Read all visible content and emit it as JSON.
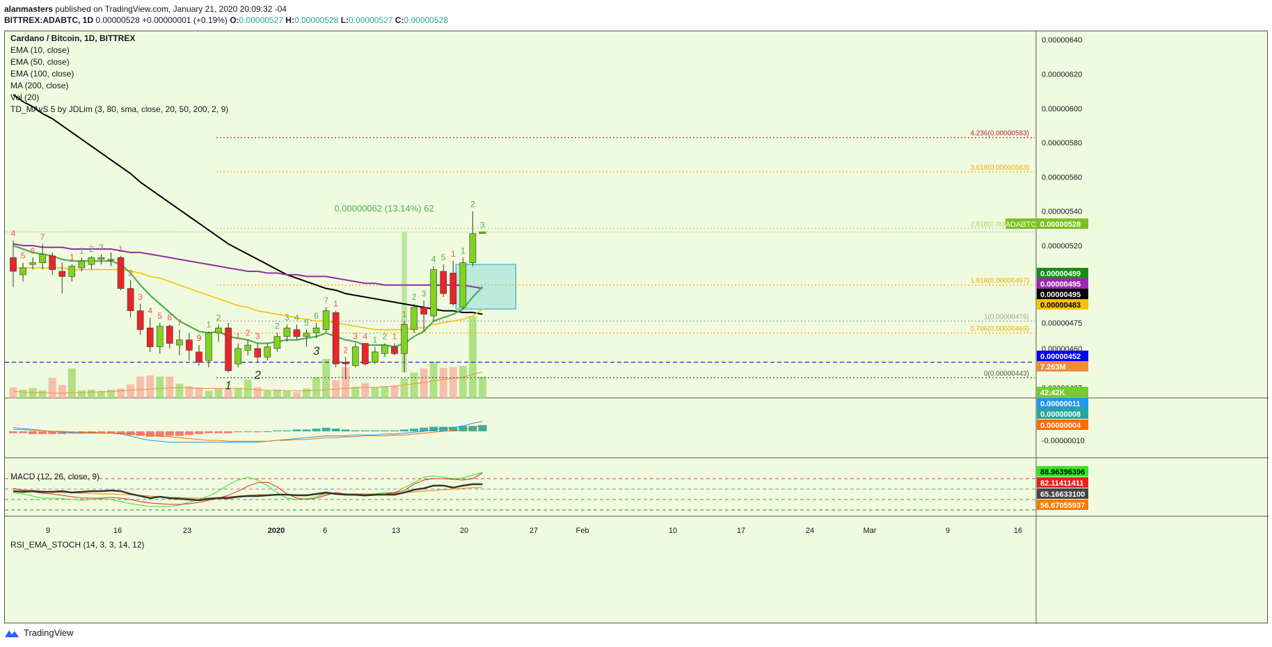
{
  "header": {
    "author": "alanmasters",
    "published_text": "published on TradingView.com, January 21, 2020 20:09:32 -04",
    "symbol": "BITTREX:ADABTC, 1D",
    "last": "0.00000528",
    "change": "+0.00000001 (+0.19%)",
    "o_label": "O:",
    "o": "0.00000527",
    "h_label": "H:",
    "h": "0.00000528",
    "l_label": "L:",
    "l": "0.00000527",
    "c_label": "C:",
    "c": "0.00000528"
  },
  "legend": {
    "title": "Cardano / Bitcoin, 1D, BITTREX",
    "indicators": [
      "EMA (10, close)",
      "EMA (50, close)",
      "EMA (100, close)",
      "MA (200, close)",
      "Vol (20)",
      "TD_MAvS 5 by JDLim (3, 80, sma, close, 20, 50, 200, 2, 9)"
    ],
    "macd": "MACD (12, 26, close, 9)",
    "rsi": "RSI_EMA_STOCH (14, 3, 3, 14, 12)"
  },
  "chart_data": {
    "type": "candlestick",
    "x_ticks": [
      "9",
      "16",
      "23",
      "2020",
      "6",
      "13",
      "20",
      "27",
      "Feb",
      "10",
      "17",
      "24",
      "Mar",
      "9",
      "16"
    ],
    "price_ticks": [
      "0.00000640",
      "0.00000620",
      "0.00000600",
      "0.00000580",
      "0.00000560",
      "0.00000540",
      "0.00000520",
      "0.00000505",
      "0.00000475",
      "0.00000460",
      "0.00000437"
    ],
    "macd_ticks": [
      "-0.00000010"
    ],
    "candles": [
      {
        "o": 513,
        "h": 523,
        "l": 496,
        "c": 505
      },
      {
        "o": 503,
        "h": 510,
        "l": 499,
        "c": 507
      },
      {
        "o": 509,
        "h": 513,
        "l": 506,
        "c": 510
      },
      {
        "o": 510,
        "h": 521,
        "l": 506,
        "c": 515
      },
      {
        "o": 514,
        "h": 516,
        "l": 503,
        "c": 506
      },
      {
        "o": 505,
        "h": 510,
        "l": 492,
        "c": 502
      },
      {
        "o": 502,
        "h": 509,
        "l": 499,
        "c": 508
      },
      {
        "o": 507,
        "h": 513,
        "l": 505,
        "c": 511
      },
      {
        "o": 509,
        "h": 514,
        "l": 506,
        "c": 513
      },
      {
        "o": 512,
        "h": 515,
        "l": 509,
        "c": 513
      },
      {
        "o": 512,
        "h": 516,
        "l": 508,
        "c": 512
      },
      {
        "o": 513,
        "h": 514,
        "l": 494,
        "c": 495
      },
      {
        "o": 495,
        "h": 500,
        "l": 478,
        "c": 482
      },
      {
        "o": 482,
        "h": 486,
        "l": 468,
        "c": 471
      },
      {
        "o": 472,
        "h": 478,
        "l": 458,
        "c": 461
      },
      {
        "o": 461,
        "h": 475,
        "l": 457,
        "c": 473
      },
      {
        "o": 473,
        "h": 474,
        "l": 460,
        "c": 463
      },
      {
        "o": 462,
        "h": 471,
        "l": 456,
        "c": 465
      },
      {
        "o": 465,
        "h": 469,
        "l": 453,
        "c": 459
      },
      {
        "o": 458,
        "h": 462,
        "l": 450,
        "c": 452
      },
      {
        "o": 453,
        "h": 470,
        "l": 449,
        "c": 469
      },
      {
        "o": 469,
        "h": 474,
        "l": 464,
        "c": 472
      },
      {
        "o": 472,
        "h": 475,
        "l": 446,
        "c": 447
      },
      {
        "o": 451,
        "h": 463,
        "l": 449,
        "c": 460
      },
      {
        "o": 459,
        "h": 465,
        "l": 456,
        "c": 462
      },
      {
        "o": 460,
        "h": 463,
        "l": 452,
        "c": 455
      },
      {
        "o": 455,
        "h": 463,
        "l": 453,
        "c": 461
      },
      {
        "o": 460,
        "h": 469,
        "l": 458,
        "c": 467
      },
      {
        "o": 467,
        "h": 474,
        "l": 464,
        "c": 472
      },
      {
        "o": 471,
        "h": 474,
        "l": 465,
        "c": 467
      },
      {
        "o": 467,
        "h": 471,
        "l": 461,
        "c": 469
      },
      {
        "o": 469,
        "h": 475,
        "l": 466,
        "c": 472
      },
      {
        "o": 471,
        "h": 484,
        "l": 469,
        "c": 482
      },
      {
        "o": 481,
        "h": 482,
        "l": 449,
        "c": 451
      },
      {
        "o": 452,
        "h": 455,
        "l": 442,
        "c": 451
      },
      {
        "o": 450,
        "h": 463,
        "l": 449,
        "c": 461
      },
      {
        "o": 463,
        "h": 463,
        "l": 450,
        "c": 451
      },
      {
        "o": 452,
        "h": 461,
        "l": 451,
        "c": 458
      },
      {
        "o": 457,
        "h": 463,
        "l": 455,
        "c": 462
      },
      {
        "o": 461,
        "h": 463,
        "l": 456,
        "c": 457
      },
      {
        "o": 457,
        "h": 476,
        "l": 446,
        "c": 474
      },
      {
        "o": 471,
        "h": 486,
        "l": 469,
        "c": 484
      },
      {
        "o": 484,
        "h": 488,
        "l": 470,
        "c": 480
      },
      {
        "o": 479,
        "h": 508,
        "l": 476,
        "c": 506
      },
      {
        "o": 505,
        "h": 509,
        "l": 490,
        "c": 492
      },
      {
        "o": 504,
        "h": 511,
        "l": 485,
        "c": 486
      },
      {
        "o": 484,
        "h": 513,
        "l": 483,
        "c": 510
      },
      {
        "o": 510,
        "h": 540,
        "l": 508,
        "c": 527
      },
      {
        "o": 527,
        "h": 528,
        "l": 527,
        "c": 528
      }
    ],
    "volume": [
      18,
      14,
      17,
      13,
      34,
      22,
      50,
      13,
      14,
      12,
      14,
      16,
      23,
      36,
      38,
      36,
      36,
      24,
      20,
      18,
      12,
      17,
      14,
      17,
      31,
      18,
      12,
      14,
      12,
      10,
      16,
      35,
      66,
      30,
      52,
      19,
      25,
      18,
      20,
      21,
      33,
      43,
      50,
      61,
      51,
      52,
      54,
      138,
      36
    ],
    "ema10": [
      520,
      518,
      516,
      515,
      514,
      512,
      511,
      511,
      511,
      511,
      511,
      509,
      504,
      497,
      491,
      486,
      481,
      476,
      473,
      470,
      469,
      470,
      467,
      466,
      465,
      463,
      463,
      464,
      465,
      465,
      466,
      467,
      469,
      467,
      465,
      464,
      462,
      462,
      462,
      461,
      463,
      467,
      470,
      476,
      478,
      480,
      483,
      490,
      496
    ],
    "ema50": [
      507,
      507,
      507,
      507,
      507,
      507,
      506,
      506,
      506,
      506,
      506,
      506,
      505,
      504,
      502,
      501,
      499,
      497,
      495,
      493,
      491,
      489,
      487,
      485,
      484,
      482,
      481,
      480,
      479,
      478,
      477,
      476,
      476,
      475,
      474,
      473,
      472,
      471,
      471,
      471,
      471,
      472,
      472,
      474,
      475,
      476,
      477,
      479,
      483
    ],
    "ema100": [
      521,
      520,
      520,
      519,
      519,
      519,
      518,
      518,
      518,
      518,
      518,
      517,
      516,
      516,
      515,
      514,
      513,
      512,
      511,
      510,
      509,
      508,
      507,
      506,
      505,
      505,
      504,
      504,
      503,
      503,
      502,
      502,
      502,
      501,
      500,
      499,
      498,
      498,
      497,
      497,
      497,
      497,
      497,
      497,
      497,
      497,
      497,
      496,
      495
    ],
    "ma200": [
      608,
      604,
      601,
      597,
      594,
      590,
      586,
      582,
      578,
      574,
      570,
      566,
      562,
      557,
      553,
      549,
      545,
      541,
      537,
      533,
      529,
      525,
      521,
      518,
      515,
      512,
      509,
      506,
      503,
      501,
      499,
      497,
      495,
      494,
      492,
      491,
      490,
      489,
      488,
      487,
      486,
      485,
      484,
      483,
      482,
      482,
      481,
      481,
      480
    ],
    "vol_ma": [
      11,
      10,
      9,
      9,
      8,
      8,
      9,
      9,
      10,
      10,
      11,
      12,
      13,
      14,
      15,
      16,
      17,
      17,
      17,
      16,
      16,
      16,
      16,
      16,
      15,
      14,
      13,
      13,
      12,
      12,
      12,
      13,
      14,
      15,
      16,
      17,
      18,
      18,
      19,
      20,
      22,
      24,
      26,
      29,
      31,
      33,
      35,
      40,
      44
    ],
    "fib_levels": [
      {
        "label": "4.236(0.00000583)",
        "value": 583,
        "color": "#b22833"
      },
      {
        "label": "3.618(0.00000563)",
        "value": 563,
        "color": "#f7a600"
      },
      {
        "label": "2.618(0.00000530)",
        "value": 530,
        "color": "#a7d05f"
      },
      {
        "label": "1.618(0.00000497)",
        "value": 497,
        "color": "#f7a600"
      },
      {
        "label": "1(0.00000476)",
        "value": 476,
        "color": "#a0a0a0"
      },
      {
        "label": "0.786(0.00000469)",
        "value": 469,
        "color": "#f7a600"
      },
      {
        "label": "0(0.00000443)",
        "value": 443,
        "color": "#555555"
      }
    ],
    "measure_label": "0.00000062 (13.14%) 62",
    "price_badges": [
      {
        "label": "ADABTC",
        "value": "0.00000528",
        "bg": "#79c21f",
        "fg": "#ffffff"
      },
      {
        "label": "",
        "value": "0.00000499",
        "bg": "#1b8a1b",
        "fg": "#ffffff"
      },
      {
        "label": "",
        "value": "0.00000495",
        "bg": "#9c27b0",
        "fg": "#ffffff"
      },
      {
        "label": "",
        "value": "0.00000495",
        "bg": "#000000",
        "fg": "#ffffff"
      },
      {
        "label": "",
        "value": "0.00000483",
        "bg": "#f5c300",
        "fg": "#000000"
      },
      {
        "label": "",
        "value": "0.00000452",
        "bg": "#0000ff",
        "fg": "#ffffff"
      },
      {
        "label": "",
        "value": "7.263M",
        "bg": "#f08c3c",
        "fg": "#ffffff"
      },
      {
        "label": "",
        "value": "42.42K",
        "bg": "#6fcf2f",
        "fg": "#ffffff"
      }
    ],
    "macd_badges": [
      {
        "value": "0.00000011",
        "bg": "#2196f3"
      },
      {
        "value": "0.00000008",
        "bg": "#26a69a"
      },
      {
        "value": "0.00000004",
        "bg": "#ff6d00"
      }
    ],
    "rsi_badges": [
      {
        "value": "88.96396396",
        "bg": "#34e61f",
        "fg": "#000000"
      },
      {
        "value": "82.11411411",
        "bg": "#e82020",
        "fg": "#ffffff"
      },
      {
        "value": "65.16633100",
        "bg": "#444444",
        "fg": "#ffffff"
      },
      {
        "value": "56.67055937",
        "bg": "#f57c00",
        "fg": "#ffffff"
      }
    ],
    "macd_hist": [
      -2,
      -2,
      -3,
      -3,
      -3,
      -3,
      -2,
      -2,
      -2,
      -2,
      -2,
      -3,
      -4,
      -5,
      -6,
      -6,
      -5,
      -5,
      -4,
      -3,
      -2,
      -2,
      -2,
      -1,
      -1,
      -1,
      0,
      1,
      1,
      2,
      2,
      3,
      4,
      3,
      2,
      1,
      1,
      1,
      1,
      1,
      2,
      3,
      4,
      5,
      5,
      5,
      6,
      6,
      7
    ],
    "macd_line": [
      4,
      3,
      2,
      1,
      0,
      -1,
      -2,
      -2,
      -2,
      -2,
      -2,
      -3,
      -5,
      -8,
      -10,
      -11,
      -12,
      -12,
      -12,
      -12,
      -12,
      -12,
      -12,
      -12,
      -12,
      -12,
      -11,
      -10,
      -9,
      -8,
      -7,
      -6,
      -5,
      -5,
      -5,
      -4,
      -4,
      -4,
      -3,
      -3,
      -2,
      -1,
      0,
      2,
      3,
      4,
      6,
      9,
      11
    ],
    "macd_signal": [
      2,
      2,
      1,
      1,
      0,
      0,
      -1,
      -1,
      -1,
      -2,
      -2,
      -2,
      -3,
      -3,
      -4,
      -5,
      -6,
      -7,
      -8,
      -9,
      -10,
      -10,
      -11,
      -11,
      -11,
      -11,
      -11,
      -10,
      -10,
      -9,
      -9,
      -8,
      -7,
      -7,
      -6,
      -6,
      -5,
      -5,
      -5,
      -4,
      -4,
      -3,
      -2,
      -1,
      0,
      1,
      2,
      4,
      6
    ],
    "rsi_main": [
      62,
      61,
      62,
      61,
      61,
      62,
      60,
      61,
      62,
      62,
      63,
      62,
      58,
      55,
      52,
      54,
      52,
      51,
      50,
      49,
      51,
      52,
      52,
      54,
      55,
      55,
      56,
      57,
      57,
      56,
      56,
      58,
      60,
      58,
      57,
      57,
      56,
      57,
      57,
      57,
      60,
      64,
      66,
      70,
      70,
      67,
      70,
      72,
      72
    ],
    "rsi_red": [
      66,
      63,
      61,
      59,
      58,
      56,
      54,
      52,
      52,
      52,
      53,
      52,
      50,
      47,
      45,
      44,
      43,
      43,
      44,
      46,
      49,
      52,
      56,
      62,
      69,
      74,
      75,
      68,
      58,
      52,
      50,
      52,
      56,
      60,
      58,
      56,
      55,
      56,
      58,
      60,
      63,
      72,
      78,
      80,
      80,
      79,
      78,
      80,
      88
    ],
    "rsi_green": [
      60,
      58,
      55,
      52,
      52,
      51,
      50,
      49,
      50,
      51,
      50,
      47,
      44,
      42,
      40,
      40,
      40,
      42,
      46,
      50,
      55,
      62,
      71,
      78,
      82,
      78,
      70,
      60,
      52,
      50,
      51,
      54,
      58,
      58,
      56,
      56,
      57,
      58,
      60,
      60,
      67,
      74,
      82,
      84,
      82,
      80,
      81,
      85,
      89
    ],
    "rsi_orange": [
      65,
      64,
      63,
      62,
      61,
      60,
      60,
      59,
      59,
      58,
      58,
      57,
      57,
      56,
      55,
      54,
      53,
      53,
      52,
      52,
      52,
      53,
      54,
      55,
      56,
      57,
      57,
      57,
      57,
      57,
      57,
      57,
      58,
      58,
      58,
      58,
      58,
      58,
      58,
      59,
      60,
      61,
      62,
      63,
      64,
      65,
      66,
      67,
      67
    ],
    "td_counts": [
      {
        "i": 0,
        "t": "4",
        "pos": "above",
        "c": "#ef5350"
      },
      {
        "i": 1,
        "t": "5",
        "pos": "above",
        "c": "#ef5350"
      },
      {
        "i": 2,
        "t": "6",
        "pos": "above",
        "c": "#ef5350"
      },
      {
        "i": 3,
        "t": "7",
        "pos": "above",
        "c": "#ef5350"
      },
      {
        "i": 6,
        "t": "1",
        "pos": "above",
        "c": "#ef5350"
      },
      {
        "i": 7,
        "t": "1",
        "pos": "above",
        "c": "#4caf50"
      },
      {
        "i": 8,
        "t": "2",
        "pos": "above",
        "c": "#4caf50"
      },
      {
        "i": 9,
        "t": "3",
        "pos": "above",
        "c": "#4caf50"
      },
      {
        "i": 11,
        "t": "1",
        "pos": "above",
        "c": "#ef5350"
      },
      {
        "i": 12,
        "t": "2",
        "pos": "above",
        "c": "#ef5350"
      },
      {
        "i": 13,
        "t": "3",
        "pos": "above",
        "c": "#ef5350"
      },
      {
        "i": 14,
        "t": "4",
        "pos": "above",
        "c": "#ef5350"
      },
      {
        "i": 15,
        "t": "5",
        "pos": "above",
        "c": "#ef5350"
      },
      {
        "i": 16,
        "t": "6",
        "pos": "above",
        "c": "#ef5350"
      },
      {
        "i": 17,
        "t": "7",
        "pos": "above",
        "c": "#ef5350"
      },
      {
        "i": 19,
        "t": "9",
        "pos": "above",
        "c": "#e53935"
      },
      {
        "i": 20,
        "t": "1",
        "pos": "above",
        "c": "#4caf50"
      },
      {
        "i": 21,
        "t": "2",
        "pos": "above",
        "c": "#4caf50"
      },
      {
        "i": 23,
        "t": "1",
        "pos": "above",
        "c": "#ef5350"
      },
      {
        "i": 24,
        "t": "2",
        "pos": "above",
        "c": "#ef5350"
      },
      {
        "i": 25,
        "t": "3",
        "pos": "above",
        "c": "#ef5350"
      },
      {
        "i": 27,
        "t": "2",
        "pos": "above",
        "c": "#4caf50"
      },
      {
        "i": 28,
        "t": "3",
        "pos": "above",
        "c": "#4caf50"
      },
      {
        "i": 29,
        "t": "4",
        "pos": "above",
        "c": "#4caf50"
      },
      {
        "i": 30,
        "t": "5",
        "pos": "above",
        "c": "#4caf50"
      },
      {
        "i": 31,
        "t": "6",
        "pos": "above",
        "c": "#4caf50"
      },
      {
        "i": 32,
        "t": "7",
        "pos": "above",
        "c": "#4caf50"
      },
      {
        "i": 33,
        "t": "1",
        "pos": "above",
        "c": "#ef5350"
      },
      {
        "i": 34,
        "t": "2",
        "pos": "above",
        "c": "#ef5350"
      },
      {
        "i": 35,
        "t": "3",
        "pos": "above",
        "c": "#ef5350"
      },
      {
        "i": 36,
        "t": "4",
        "pos": "above",
        "c": "#ef5350"
      },
      {
        "i": 37,
        "t": "1",
        "pos": "above",
        "c": "#4caf50"
      },
      {
        "i": 38,
        "t": "2",
        "pos": "above",
        "c": "#4caf50"
      },
      {
        "i": 39,
        "t": "1",
        "pos": "above",
        "c": "#ef5350"
      },
      {
        "i": 40,
        "t": "1",
        "pos": "above",
        "c": "#4caf50"
      },
      {
        "i": 41,
        "t": "2",
        "pos": "above",
        "c": "#4caf50"
      },
      {
        "i": 42,
        "t": "3",
        "pos": "above",
        "c": "#4caf50"
      },
      {
        "i": 43,
        "t": "4",
        "pos": "above",
        "c": "#4caf50"
      },
      {
        "i": 44,
        "t": "5",
        "pos": "above",
        "c": "#4caf50"
      },
      {
        "i": 45,
        "t": "1",
        "pos": "above",
        "c": "#ef5350"
      },
      {
        "i": 46,
        "t": "1",
        "pos": "above",
        "c": "#4caf50"
      },
      {
        "i": 47,
        "t": "2",
        "pos": "above",
        "c": "#4caf50"
      },
      {
        "i": 48,
        "t": "3",
        "pos": "above",
        "c": "#4caf50"
      }
    ],
    "wave_labels": [
      {
        "i": 22,
        "t": "1"
      },
      {
        "i": 25,
        "t": "2"
      },
      {
        "i": 31,
        "t": "3"
      }
    ]
  },
  "footer": {
    "brand": "TradingView"
  }
}
